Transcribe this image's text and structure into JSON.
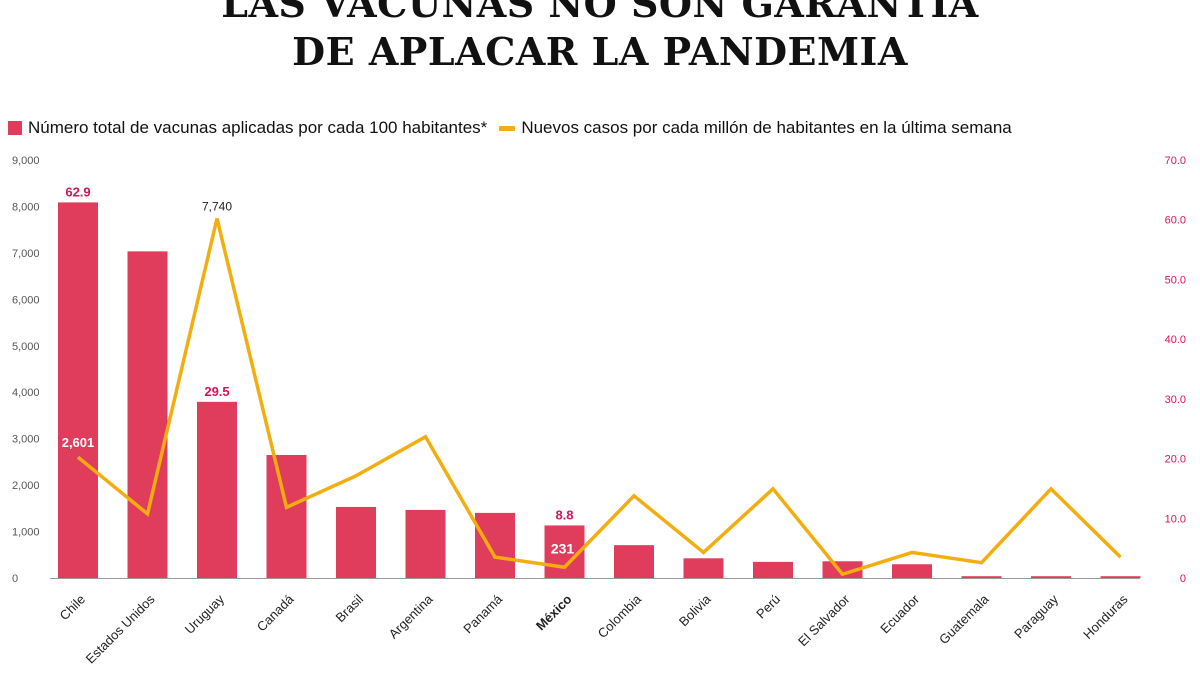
{
  "title": {
    "line1": "LAS VACUNAS NO SON GARANTÍA",
    "line2": "DE APLACAR LA PANDEMIA"
  },
  "colors": {
    "bar": "#e03d5c",
    "line": "#f3ad0f",
    "right_axis": "#d4145a",
    "axis_text": "#555555",
    "label_dark": "#222222"
  },
  "legend": {
    "bar_label": "Número total de vacunas aplicadas por cada 100 habitantes*",
    "line_label": "Nuevos casos por cada millón de habitantes en la última semana"
  },
  "chart_data": {
    "type": "bar+line",
    "categories": [
      "Chile",
      "Estados Unidos",
      "Uruguay",
      "Canadá",
      "Brasil",
      "Argentina",
      "Panamá",
      "México",
      "Colombia",
      "Bolivia",
      "Perú",
      "El Salvador",
      "Ecuador",
      "Guatemala",
      "Paraguay",
      "Honduras"
    ],
    "highlight_category": "México",
    "series": [
      {
        "name": "Número total de vacunas aplicadas por cada 100 habitantes*",
        "type": "bar",
        "axis": "right",
        "values": [
          62.9,
          54.7,
          29.5,
          20.6,
          11.9,
          11.4,
          10.9,
          8.8,
          5.5,
          3.3,
          2.7,
          2.8,
          2.3,
          0.3,
          0.3,
          0.3
        ]
      },
      {
        "name": "Nuevos casos por cada millón de habitantes en la última semana",
        "type": "line",
        "axis": "left",
        "values": [
          2601,
          1380,
          7740,
          1520,
          2200,
          3040,
          450,
          231,
          1770,
          550,
          1920,
          80,
          550,
          330,
          1920,
          450
        ]
      }
    ],
    "left_axis": {
      "range": [
        0,
        9000
      ],
      "ticks": [
        0,
        1000,
        2000,
        3000,
        4000,
        5000,
        6000,
        7000,
        8000,
        9000
      ],
      "tick_labels": [
        "0",
        "1,000",
        "2,000",
        "3,000",
        "4,000",
        "5,000",
        "6,000",
        "7,000",
        "8,000",
        "9,000"
      ]
    },
    "right_axis": {
      "range": [
        0,
        70
      ],
      "ticks": [
        0,
        10,
        20,
        30,
        40,
        50,
        60,
        70
      ],
      "tick_labels": [
        "0",
        "10.0",
        "20.0",
        "30.0",
        "40.0",
        "50.0",
        "60.0",
        "70.0"
      ]
    },
    "annotations": [
      {
        "text": "62.9",
        "category": "Chile",
        "series": "bar",
        "value": 62.9
      },
      {
        "text": "29.5",
        "category": "Uruguay",
        "series": "bar",
        "value": 29.5
      },
      {
        "text": "8.8",
        "category": "México",
        "series": "bar",
        "value": 8.8
      },
      {
        "text": "7,740",
        "category": "Uruguay",
        "series": "line",
        "value": 7740
      },
      {
        "text": "2,601",
        "category": "Chile",
        "series": "line",
        "value": 2601
      },
      {
        "text": "231",
        "category": "México",
        "series": "line",
        "value": 231
      }
    ]
  }
}
